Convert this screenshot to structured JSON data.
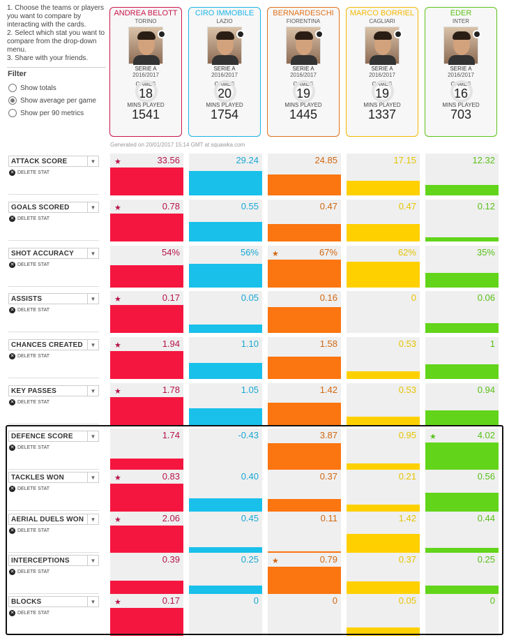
{
  "instructions": [
    "1. Choose the teams or players you want to compare by interacting with the cards.",
    "2. Select which stat you want to compare from the drop-down menu.",
    "3. Share with your friends."
  ],
  "filter": {
    "title": "Filter",
    "options": [
      {
        "label": "Show totals",
        "checked": false
      },
      {
        "label": "Show average per game",
        "checked": true
      },
      {
        "label": "Show per 90 metrics",
        "checked": false
      }
    ]
  },
  "players": [
    {
      "name": "ANDREA BELOTT",
      "team": "TORINO",
      "league": "SERIE A",
      "season": "2016/2017",
      "games_label": "GAMES",
      "games": "18",
      "mins_label": "MINS PLAYED",
      "mins": "1541",
      "color": "#c8154a"
    },
    {
      "name": "CIRO IMMOBILE",
      "team": "LAZIO",
      "league": "SERIE A",
      "season": "2016/2017",
      "games_label": "GAMES",
      "games": "20",
      "mins_label": "MINS PLAYED",
      "mins": "1754",
      "color": "#1ab3e6"
    },
    {
      "name": "BERNARDESCHI",
      "team": "FIORENTINA",
      "league": "SERIE A",
      "season": "2016/2017",
      "games_label": "GAMES",
      "games": "19",
      "mins_label": "MINS PLAYED",
      "mins": "1445",
      "color": "#e0701a"
    },
    {
      "name": "MARCO BORRIEL",
      "team": "CAGLIARI",
      "league": "SERIE A",
      "season": "2016/2017",
      "games_label": "GAMES",
      "games": "19",
      "mins_label": "MINS PLAYED",
      "mins": "1337",
      "color": "#f2b800"
    },
    {
      "name": "ÉDER",
      "team": "INTER",
      "league": "SERIE A",
      "season": "2016/2017",
      "games_label": "GAMES",
      "games": "16",
      "mins_label": "MINS PLAYED",
      "mins": "703",
      "color": "#5cc21a"
    }
  ],
  "bar_colors": [
    "#f5163f",
    "#19c0ea",
    "#fb7510",
    "#ffd000",
    "#62d41a"
  ],
  "text_colors": [
    "#b5134a",
    "#17a7d4",
    "#d0660f",
    "#e5c400",
    "#59bf18"
  ],
  "generated": "Generated on 20/01/2017 15:14 GMT at squawka.com",
  "delete_label": "DELETE STAT",
  "stats": [
    {
      "label": "ATTACK SCORE",
      "values": [
        "33.56",
        "29.24",
        "24.85",
        "17.15",
        "12.32"
      ],
      "fill": [
        0.62,
        0.54,
        0.46,
        0.32,
        0.23
      ],
      "star": 0
    },
    {
      "label": "GOALS SCORED",
      "values": [
        "0.78",
        "0.55",
        "0.47",
        "0.47",
        "0.12"
      ],
      "fill": [
        0.62,
        0.44,
        0.38,
        0.38,
        0.1
      ],
      "star": 0
    },
    {
      "label": "SHOT ACCURACY",
      "values": [
        "54%",
        "56%",
        "67%",
        "62%",
        "35%"
      ],
      "fill": [
        0.5,
        0.52,
        0.62,
        0.58,
        0.33
      ],
      "star": 2
    },
    {
      "label": "ASSISTS",
      "values": [
        "0.17",
        "0.05",
        "0.16",
        "0",
        "0.06"
      ],
      "fill": [
        0.62,
        0.18,
        0.58,
        0.0,
        0.22
      ],
      "star": 0
    },
    {
      "label": "CHANCES CREATED",
      "values": [
        "1.94",
        "1.10",
        "1.58",
        "0.53",
        "1"
      ],
      "fill": [
        0.62,
        0.35,
        0.5,
        0.17,
        0.32
      ],
      "star": 0
    },
    {
      "label": "KEY PASSES",
      "values": [
        "1.78",
        "1.05",
        "1.42",
        "0.53",
        "0.94"
      ],
      "fill": [
        0.62,
        0.37,
        0.5,
        0.19,
        0.33
      ],
      "star": 0
    },
    {
      "label": "DEFENCE SCORE",
      "values": [
        "1.74",
        "-0.43",
        "3.87",
        "0.95",
        "4.02"
      ],
      "fill": [
        0.27,
        0.0,
        0.6,
        0.15,
        0.62
      ],
      "star": 4
    },
    {
      "label": "TACKLES WON",
      "values": [
        "0.83",
        "0.40",
        "0.37",
        "0.21",
        "0.56"
      ],
      "fill": [
        0.62,
        0.3,
        0.28,
        0.16,
        0.42
      ],
      "star": 0
    },
    {
      "label": "AERIAL DUELS WON",
      "values": [
        "2.06",
        "0.45",
        "0.11",
        "1.42",
        "0.44"
      ],
      "fill": [
        0.62,
        0.14,
        0.04,
        0.43,
        0.13
      ],
      "star": 0
    },
    {
      "label": "INTERCEPTIONS",
      "values": [
        "0.39",
        "0.25",
        "0.79",
        "0.37",
        "0.25"
      ],
      "fill": [
        0.31,
        0.2,
        0.62,
        0.29,
        0.2
      ],
      "star": 2
    },
    {
      "label": "BLOCKS",
      "values": [
        "0.17",
        "0",
        "0",
        "0.05",
        "0"
      ],
      "fill": [
        0.62,
        0.0,
        0.0,
        0.18,
        0.0
      ],
      "star": 0
    }
  ]
}
